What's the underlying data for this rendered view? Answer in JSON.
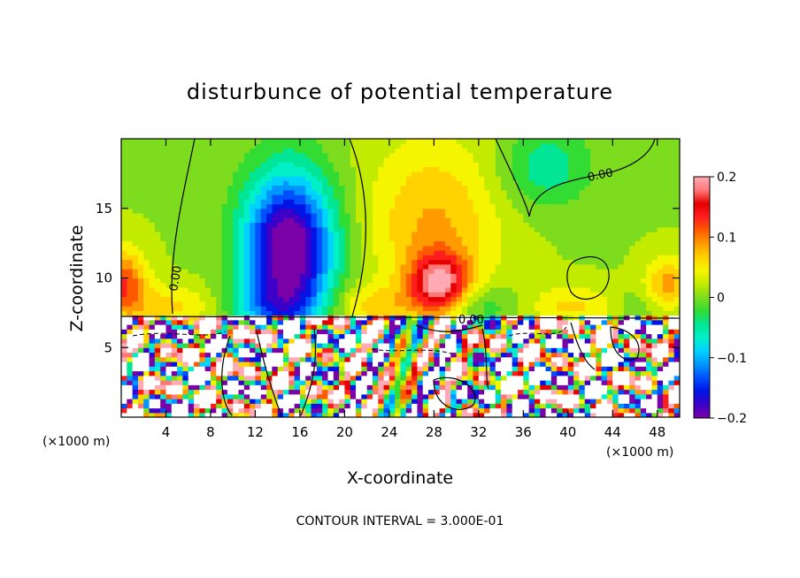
{
  "chart_data": {
    "type": "heatmap",
    "title": "disturbunce of potential temperature",
    "xlabel": "X-coordinate",
    "ylabel": "Z-coordinate",
    "x_unit_left": "(×1000 m)",
    "x_unit_right": "(×1000 m)",
    "xlim": [
      0,
      50
    ],
    "ylim": [
      0,
      20
    ],
    "xticks": [
      4,
      8,
      12,
      16,
      20,
      24,
      28,
      32,
      36,
      40,
      44,
      48
    ],
    "xtick_labels": [
      "4",
      "8",
      "12",
      "16",
      "20",
      "24",
      "28",
      "32",
      "36",
      "40",
      "44",
      "48"
    ],
    "yticks": [
      5,
      10,
      15
    ],
    "ytick_labels": [
      "5",
      "10",
      "15"
    ],
    "colorbar": {
      "range": [
        -0.2,
        0.2
      ],
      "ticks": [
        0.2,
        0.1,
        0,
        -0.1,
        -0.2
      ],
      "tick_labels": [
        "0.2",
        "0.1",
        "0",
        "−0.1",
        "−0.2"
      ]
    },
    "contour_labels": [
      "0.00",
      "0.00",
      "0.00"
    ],
    "footer": "CONTOUR INTERVAL = 3.000E-01",
    "colors": {
      "palette": [
        "#7a00a8",
        "#3c00c8",
        "#0014e6",
        "#0050ff",
        "#0096ff",
        "#00d2ff",
        "#00f0c8",
        "#00e696",
        "#32dc32",
        "#7ddc1e",
        "#c3eb00",
        "#f5f500",
        "#ffd200",
        "#ff9b00",
        "#ff5a00",
        "#ff1e1e",
        "#e60000",
        "#ff7878",
        "#ffaab4"
      ],
      "overflow": "#ffffff"
    }
  }
}
